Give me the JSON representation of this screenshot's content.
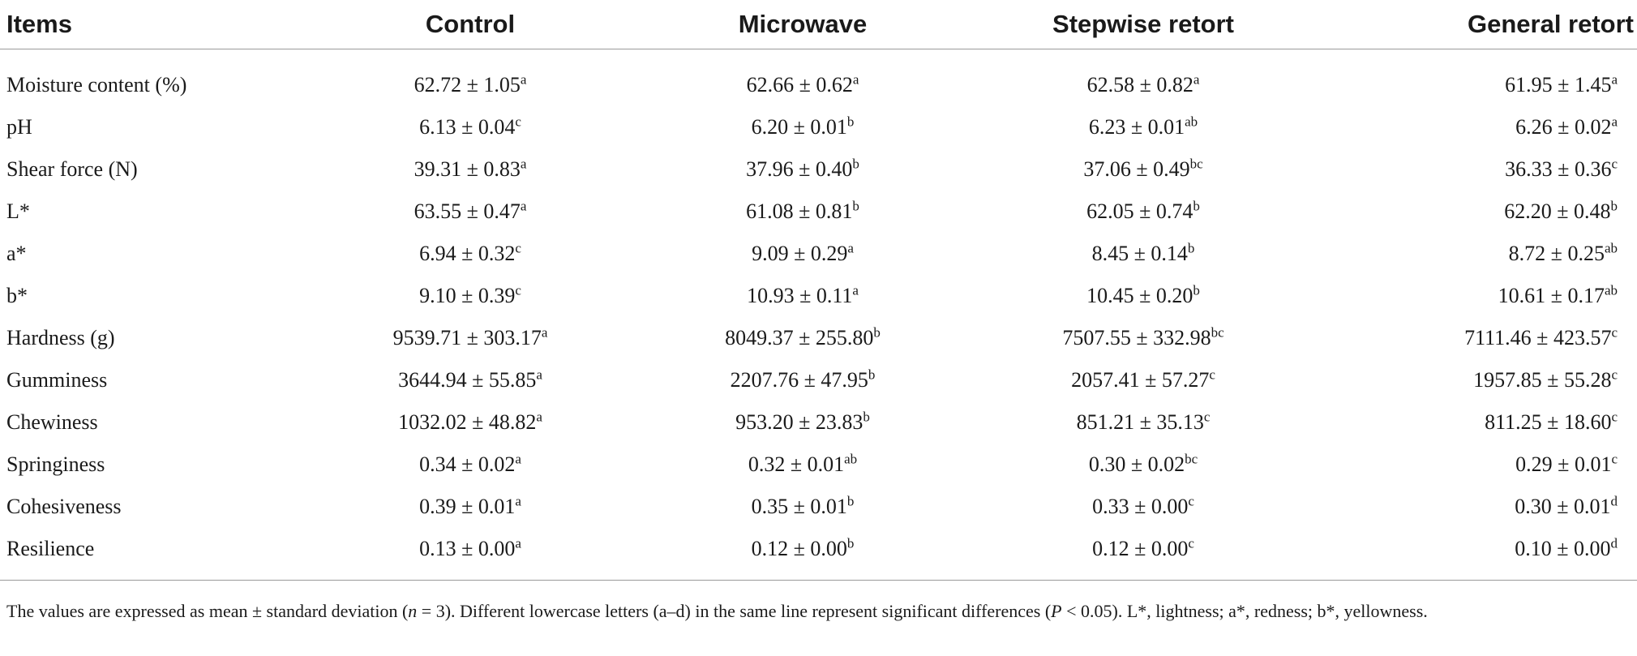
{
  "table": {
    "headers": [
      "Items",
      "Control",
      "Microwave",
      "Stepwise retort",
      "General retort"
    ],
    "rows": [
      {
        "item": "Moisture content (%)",
        "cells": [
          {
            "v": "62.72 ± 1.05",
            "s": "a"
          },
          {
            "v": "62.66 ± 0.62",
            "s": "a"
          },
          {
            "v": "62.58 ± 0.82",
            "s": "a"
          },
          {
            "v": "61.95 ± 1.45",
            "s": "a"
          }
        ]
      },
      {
        "item": "pH",
        "cells": [
          {
            "v": "6.13 ± 0.04",
            "s": "c"
          },
          {
            "v": "6.20 ± 0.01",
            "s": "b"
          },
          {
            "v": "6.23 ± 0.01",
            "s": "ab"
          },
          {
            "v": "6.26 ± 0.02",
            "s": "a"
          }
        ]
      },
      {
        "item": "Shear force (N)",
        "cells": [
          {
            "v": "39.31 ± 0.83",
            "s": "a"
          },
          {
            "v": "37.96 ± 0.40",
            "s": "b"
          },
          {
            "v": "37.06 ± 0.49",
            "s": "bc"
          },
          {
            "v": "36.33 ± 0.36",
            "s": "c"
          }
        ]
      },
      {
        "item": "L*",
        "cells": [
          {
            "v": "63.55 ± 0.47",
            "s": "a"
          },
          {
            "v": "61.08 ± 0.81",
            "s": "b"
          },
          {
            "v": "62.05 ± 0.74",
            "s": "b"
          },
          {
            "v": "62.20 ± 0.48",
            "s": "b"
          }
        ]
      },
      {
        "item": "a*",
        "cells": [
          {
            "v": "6.94 ± 0.32",
            "s": "c"
          },
          {
            "v": "9.09 ± 0.29",
            "s": "a"
          },
          {
            "v": "8.45 ± 0.14",
            "s": "b"
          },
          {
            "v": "8.72 ± 0.25",
            "s": "ab"
          }
        ]
      },
      {
        "item": "b*",
        "cells": [
          {
            "v": "9.10 ± 0.39",
            "s": "c"
          },
          {
            "v": "10.93 ± 0.11",
            "s": "a"
          },
          {
            "v": "10.45 ± 0.20",
            "s": "b"
          },
          {
            "v": "10.61 ± 0.17",
            "s": "ab"
          }
        ]
      },
      {
        "item": "Hardness (g)",
        "cells": [
          {
            "v": "9539.71 ± 303.17",
            "s": "a"
          },
          {
            "v": "8049.37 ± 255.80",
            "s": "b"
          },
          {
            "v": "7507.55 ± 332.98",
            "s": "bc"
          },
          {
            "v": "7111.46 ± 423.57",
            "s": "c"
          }
        ]
      },
      {
        "item": "Gumminess",
        "cells": [
          {
            "v": "3644.94 ± 55.85",
            "s": "a"
          },
          {
            "v": "2207.76 ± 47.95",
            "s": "b"
          },
          {
            "v": "2057.41 ± 57.27",
            "s": "c"
          },
          {
            "v": "1957.85 ± 55.28",
            "s": "c"
          }
        ]
      },
      {
        "item": "Chewiness",
        "cells": [
          {
            "v": "1032.02 ± 48.82",
            "s": "a"
          },
          {
            "v": "953.20 ± 23.83",
            "s": "b"
          },
          {
            "v": "851.21 ± 35.13",
            "s": "c"
          },
          {
            "v": "811.25 ± 18.60",
            "s": "c"
          }
        ]
      },
      {
        "item": "Springiness",
        "cells": [
          {
            "v": "0.34 ± 0.02",
            "s": "a"
          },
          {
            "v": "0.32 ± 0.01",
            "s": "ab"
          },
          {
            "v": "0.30 ± 0.02",
            "s": "bc"
          },
          {
            "v": "0.29 ± 0.01",
            "s": "c"
          }
        ]
      },
      {
        "item": "Cohesiveness",
        "cells": [
          {
            "v": "0.39 ± 0.01",
            "s": "a"
          },
          {
            "v": "0.35 ± 0.01",
            "s": "b"
          },
          {
            "v": "0.33 ± 0.00",
            "s": "c"
          },
          {
            "v": "0.30 ± 0.01",
            "s": "d"
          }
        ]
      },
      {
        "item": "Resilience",
        "cells": [
          {
            "v": "0.13 ± 0.00",
            "s": "a"
          },
          {
            "v": "0.12 ± 0.00",
            "s": "b"
          },
          {
            "v": "0.12 ± 0.00",
            "s": "c"
          },
          {
            "v": "0.10 ± 0.00",
            "s": "d"
          }
        ]
      }
    ]
  },
  "footnote": {
    "p1": "The values are expressed as mean ± standard deviation (",
    "n": "n",
    "p2": " = 3). Different lowercase letters (a–d) in the same line represent significant differences (",
    "P": "P",
    "p3": " < 0.05). L*, lightness; a*, redness; b*, yellowness."
  }
}
